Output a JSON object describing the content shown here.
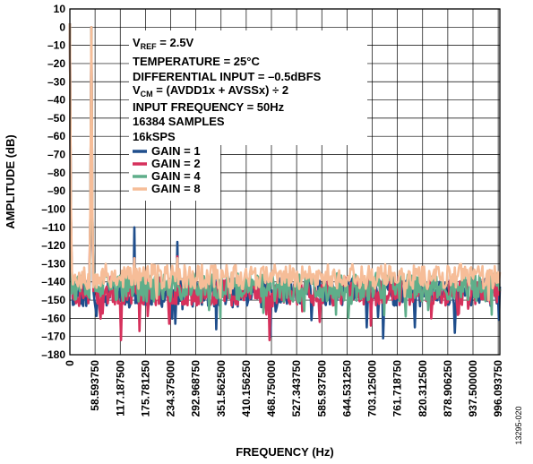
{
  "chart_data": {
    "type": "line",
    "xlabel": "FREQUENCY (Hz)",
    "ylabel": "AMPLITUDE (dB)",
    "xlim": [
      0,
      1000
    ],
    "ylim": [
      -180,
      10
    ],
    "grid": true,
    "x_ticks": [
      0,
      58.59375,
      117.1875,
      175.78125,
      234.375,
      292.96875,
      351.5625,
      410.15625,
      468.75,
      527.34375,
      585.9375,
      644.53125,
      703.125,
      761.71875,
      820.3125,
      878.90625,
      937.5,
      996.09375
    ],
    "x_tick_labels": [
      "0",
      "58.593750",
      "117.187500",
      "175.781250",
      "234.375000",
      "292.968750",
      "351.562500",
      "410.156250",
      "468.750000",
      "527.343750",
      "585.937500",
      "644.531250",
      "703.125000",
      "761.718750",
      "820.312500",
      "878.906250",
      "937.500000",
      "996.093750"
    ],
    "y_ticks": [
      10,
      0,
      -10,
      -20,
      -30,
      -40,
      -50,
      -60,
      -70,
      -80,
      -90,
      -100,
      -110,
      -120,
      -130,
      -140,
      -150,
      -160,
      -170,
      -180
    ],
    "y_tick_labels": [
      "10",
      "0",
      "–10",
      "–20",
      "–30",
      "–40",
      "–50",
      "–60",
      "–70",
      "–80",
      "–90",
      "–100",
      "–110",
      "–120",
      "–130",
      "–140",
      "–150",
      "–160",
      "–170",
      "–180"
    ],
    "annotations": {
      "vref_main": "V",
      "vref_sub": "REF",
      "vref_rest": " = 2.5V",
      "temperature": "TEMPERATURE = 25°C",
      "diff_input": "DIFFERENTIAL INPUT = –0.5dBFS",
      "vcm_main": "V",
      "vcm_sub": "CM",
      "vcm_rest": " = (AVDD1x + AVSSx) ÷ 2",
      "input_freq": "INPUT FREQUENCY = 50Hz",
      "samples": "16384 SAMPLES",
      "rate": "16kSPS"
    },
    "legend_position": "center-left",
    "series": [
      {
        "name": "GAIN = 1",
        "color": "#1f4e8c",
        "floor": -146,
        "spread": 8,
        "seed": 11,
        "peaks": [
          [
            0,
            2
          ],
          [
            50,
            0
          ],
          [
            100,
            -139
          ],
          [
            150,
            -110
          ],
          [
            200,
            -138
          ],
          [
            250,
            -118
          ],
          [
            300,
            -142
          ]
        ],
        "dips": [
          [
            466,
            -170
          ],
          [
            728,
            -171
          ],
          [
            895,
            -168
          ],
          [
            690,
            -165
          ],
          [
            340,
            -166
          ],
          [
            245,
            -163
          ],
          [
            562,
            -161
          ],
          [
            802,
            -165
          ]
        ]
      },
      {
        "name": "GAIN = 2",
        "color": "#d6315c",
        "floor": -145,
        "spread": 8,
        "seed": 23,
        "peaks": [
          [
            0,
            2
          ],
          [
            50,
            0
          ],
          [
            150,
            -127
          ],
          [
            250,
            -126
          ]
        ],
        "dips": [
          [
            120,
            -172
          ],
          [
            162,
            -167
          ],
          [
            465,
            -172
          ],
          [
            232,
            -163
          ],
          [
            580,
            -162
          ],
          [
            700,
            -164
          ],
          [
            840,
            -160
          ]
        ]
      },
      {
        "name": "GAIN = 4",
        "color": "#5fae8a",
        "floor": -143,
        "spread": 8,
        "seed": 37,
        "peaks": [
          [
            0,
            2
          ],
          [
            50,
            0
          ],
          [
            150,
            -128
          ],
          [
            250,
            -129
          ]
        ],
        "dips": [
          [
            350,
            -160
          ],
          [
            620,
            -158
          ],
          [
            980,
            -158
          ],
          [
            450,
            -157
          ],
          [
            780,
            -159
          ]
        ]
      },
      {
        "name": "GAIN = 8",
        "color": "#f6bd98",
        "floor": -137,
        "spread": 7,
        "seed": 53,
        "peaks": [
          [
            0,
            2
          ],
          [
            50,
            0
          ],
          [
            150,
            -127
          ],
          [
            250,
            -127
          ],
          [
            430,
            -128
          ],
          [
            520,
            -128
          ],
          [
            880,
            -127
          ]
        ],
        "dips": []
      }
    ]
  },
  "figure_id": "13295-020"
}
